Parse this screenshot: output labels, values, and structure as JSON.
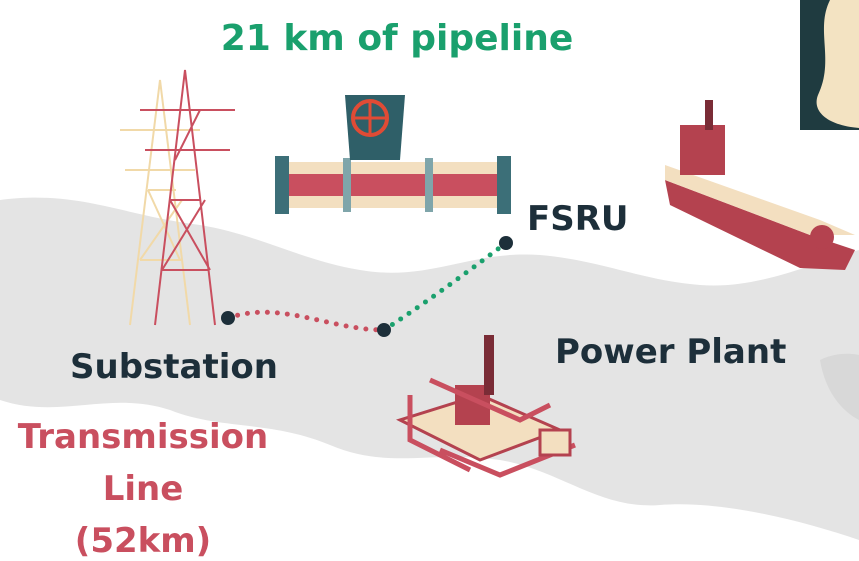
{
  "title": "21 km of pipeline",
  "labels": {
    "fsru": "FSRU",
    "substation": "Substation",
    "power_plant": "Power Plant"
  },
  "transmission_line": [
    "Transmission",
    "Line",
    "(52km)"
  ]
}
